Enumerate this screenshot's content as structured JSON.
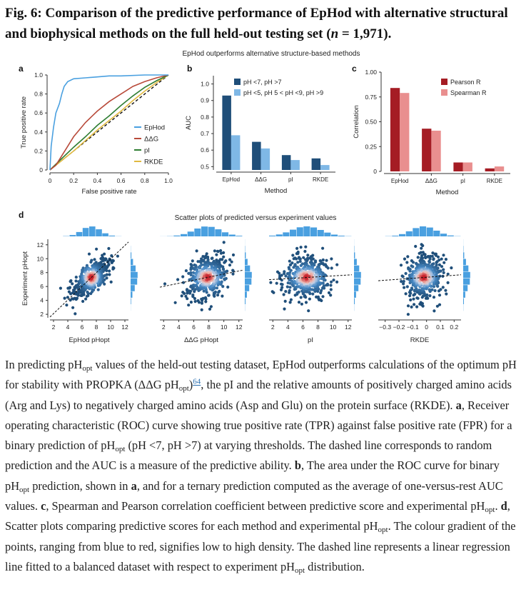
{
  "figure": {
    "title_prefix": "Fig. 6:",
    "title_main": "Comparison of the predictive performance of EpHod with alternative structural and biophysical methods on the full held-out testing set (",
    "title_n": "n",
    "title_suffix": " = 1,971).",
    "top_heading": "EpHod outperforms alternative structure-based methods",
    "d_heading": "Scatter plots of predicted versus experiment values",
    "panel_labels": [
      "a",
      "b",
      "c",
      "d"
    ]
  },
  "colors": {
    "ephod": "#4aa0e0",
    "ddg": "#b84a3a",
    "pi": "#2e7d32",
    "rkde": "#e0b940",
    "dark_blue": "#1f4e79",
    "light_blue": "#7fb8e6",
    "pearson": "#a51c24",
    "spearman": "#e98f8f"
  },
  "chart_data": [
    {
      "id": "a",
      "type": "line",
      "xlabel": "False positive rate",
      "ylabel": "True positive rate",
      "xlim": [
        0,
        1
      ],
      "ylim": [
        0,
        1
      ],
      "xticks": [
        "0",
        "0.2",
        "0.4",
        "0.6",
        "0.8",
        "1.0"
      ],
      "yticks": [
        "0",
        "0.2",
        "0.4",
        "0.6",
        "0.8",
        "1.0"
      ],
      "legend_position": "bottom-right",
      "series": [
        {
          "name": "EpHod",
          "x": [
            0,
            0.01,
            0.03,
            0.05,
            0.08,
            0.1,
            0.12,
            0.15,
            0.2,
            0.3,
            0.4,
            0.5,
            0.6,
            0.8,
            1.0
          ],
          "y": [
            0,
            0.25,
            0.45,
            0.6,
            0.7,
            0.8,
            0.88,
            0.93,
            0.96,
            0.97,
            0.98,
            0.99,
            0.99,
            1.0,
            1.0
          ]
        },
        {
          "name": "ΔΔG",
          "x": [
            0,
            0.05,
            0.1,
            0.15,
            0.2,
            0.3,
            0.4,
            0.5,
            0.6,
            0.7,
            0.8,
            0.9,
            1.0
          ],
          "y": [
            0,
            0.05,
            0.15,
            0.25,
            0.35,
            0.5,
            0.62,
            0.72,
            0.8,
            0.88,
            0.93,
            0.97,
            1.0
          ]
        },
        {
          "name": "pI",
          "x": [
            0,
            0.1,
            0.2,
            0.3,
            0.4,
            0.5,
            0.6,
            0.7,
            0.8,
            0.9,
            1.0
          ],
          "y": [
            0,
            0.12,
            0.24,
            0.35,
            0.47,
            0.57,
            0.68,
            0.78,
            0.87,
            0.94,
            1.0
          ]
        },
        {
          "name": "RKDE",
          "x": [
            0,
            0.1,
            0.2,
            0.3,
            0.4,
            0.5,
            0.6,
            0.7,
            0.8,
            0.9,
            1.0
          ],
          "y": [
            0,
            0.1,
            0.2,
            0.31,
            0.42,
            0.52,
            0.62,
            0.73,
            0.83,
            0.92,
            1.0
          ]
        }
      ]
    },
    {
      "id": "b",
      "type": "bar",
      "xlabel": "Method",
      "ylabel": "AUC",
      "ylim": [
        0.48,
        1.05
      ],
      "categories": [
        "EpHod",
        "ΔΔG",
        "pI",
        "RKDE"
      ],
      "yticks": [
        "0.5",
        "0.6",
        "0.7",
        "0.8",
        "0.9",
        "1.0"
      ],
      "legend_position": "top-right",
      "series": [
        {
          "name": "pH <7, pH >7",
          "values": [
            0.93,
            0.65,
            0.57,
            0.55
          ]
        },
        {
          "name": "pH <5, pH 5 < pH <9, pH >9",
          "values": [
            0.69,
            0.61,
            0.54,
            0.51
          ]
        }
      ]
    },
    {
      "id": "c",
      "type": "bar",
      "xlabel": "Method",
      "ylabel": "Correlation",
      "ylim": [
        0,
        1.0
      ],
      "categories": [
        "EpHod",
        "ΔΔG",
        "pI",
        "RKDE"
      ],
      "yticks": [
        "0",
        "0.25",
        "0.50",
        "0.75",
        "1.00"
      ],
      "legend_position": "top-right",
      "series": [
        {
          "name": "Pearson R",
          "values": [
            0.84,
            0.43,
            0.09,
            0.03
          ]
        },
        {
          "name": "Spearman R",
          "values": [
            0.79,
            0.41,
            0.09,
            0.05
          ]
        }
      ]
    },
    {
      "id": "d",
      "type": "scatter",
      "ylabel": "Experiment pHopt",
      "yticks": [
        "2",
        "4",
        "6",
        "8",
        "10",
        "12"
      ],
      "panels": [
        {
          "xlabel": "EpHod pHopt",
          "xticks": [
            "2",
            "4",
            "6",
            "8",
            "10",
            "12"
          ],
          "xlim": [
            1.5,
            12.5
          ],
          "slope": 0.75,
          "center": [
            7.3,
            7.3
          ],
          "spread": [
            1.3,
            1.5
          ]
        },
        {
          "xlabel": "ΔΔG pHopt",
          "xticks": [
            "2",
            "4",
            "6",
            "8",
            "10",
            "12"
          ],
          "xlim": [
            1.5,
            12.5
          ],
          "slope": 0.2,
          "center": [
            7.8,
            7.3
          ],
          "spread": [
            1.8,
            1.6
          ]
        },
        {
          "xlabel": "pI",
          "xticks": [
            "2",
            "4",
            "6",
            "8",
            "10",
            "12"
          ],
          "xlim": [
            1.5,
            12.5
          ],
          "slope": 0.06,
          "center": [
            6.5,
            7.3
          ],
          "spread": [
            2.0,
            1.6
          ]
        },
        {
          "xlabel": "RKDE",
          "xticks": [
            "−0.3",
            "−0.2",
            "−0.1",
            "0",
            "0.1",
            "0.2"
          ],
          "xlim": [
            -0.35,
            0.25
          ],
          "slope": 0.04,
          "center": [
            -0.02,
            7.3
          ],
          "spread": [
            0.09,
            1.6
          ]
        }
      ]
    }
  ],
  "caption": {
    "p1": "In predicting pH",
    "opt": "opt",
    "p2": " values of the held-out testing dataset, EpHod outperforms calculations of the optimum pH for stability with PROPKA (ΔΔG pH",
    "p3": ")",
    "ref": "64",
    "p4": ", the pI and the relative amounts of positively charged amino acids (Arg and Lys) to negatively charged amino acids (Asp and Glu) on the protein surface (RKDE). ",
    "a": "a",
    "p5": ", Receiver operating characteristic (ROC) curve showing true positive rate (TPR) against false positive rate (FPR) for a binary prediction of pH",
    "p6": " (pH <7, pH >7) at varying thresholds. The dashed line corresponds to random prediction and the AUC is a measure of the predictive ability. ",
    "b": "b",
    "p7": ", The area under the ROC curve for binary pH",
    "p8": " prediction, shown in ",
    "p9": ", and for a ternary prediction computed as the average of one-versus-rest AUC values. ",
    "c": "c",
    "p10": ", Spearman and Pearson correlation coefficient between predictive score and experimental pH",
    "p11": ". ",
    "d": "d",
    "p12": ", Scatter plots comparing predictive scores for each method and experimental pH",
    "p13": ". The colour gradient of the points, ranging from blue to red, signifies low to high density. The dashed line represents a linear regression line fitted to a balanced dataset with respect to experiment pH",
    "p14": " distribution."
  }
}
